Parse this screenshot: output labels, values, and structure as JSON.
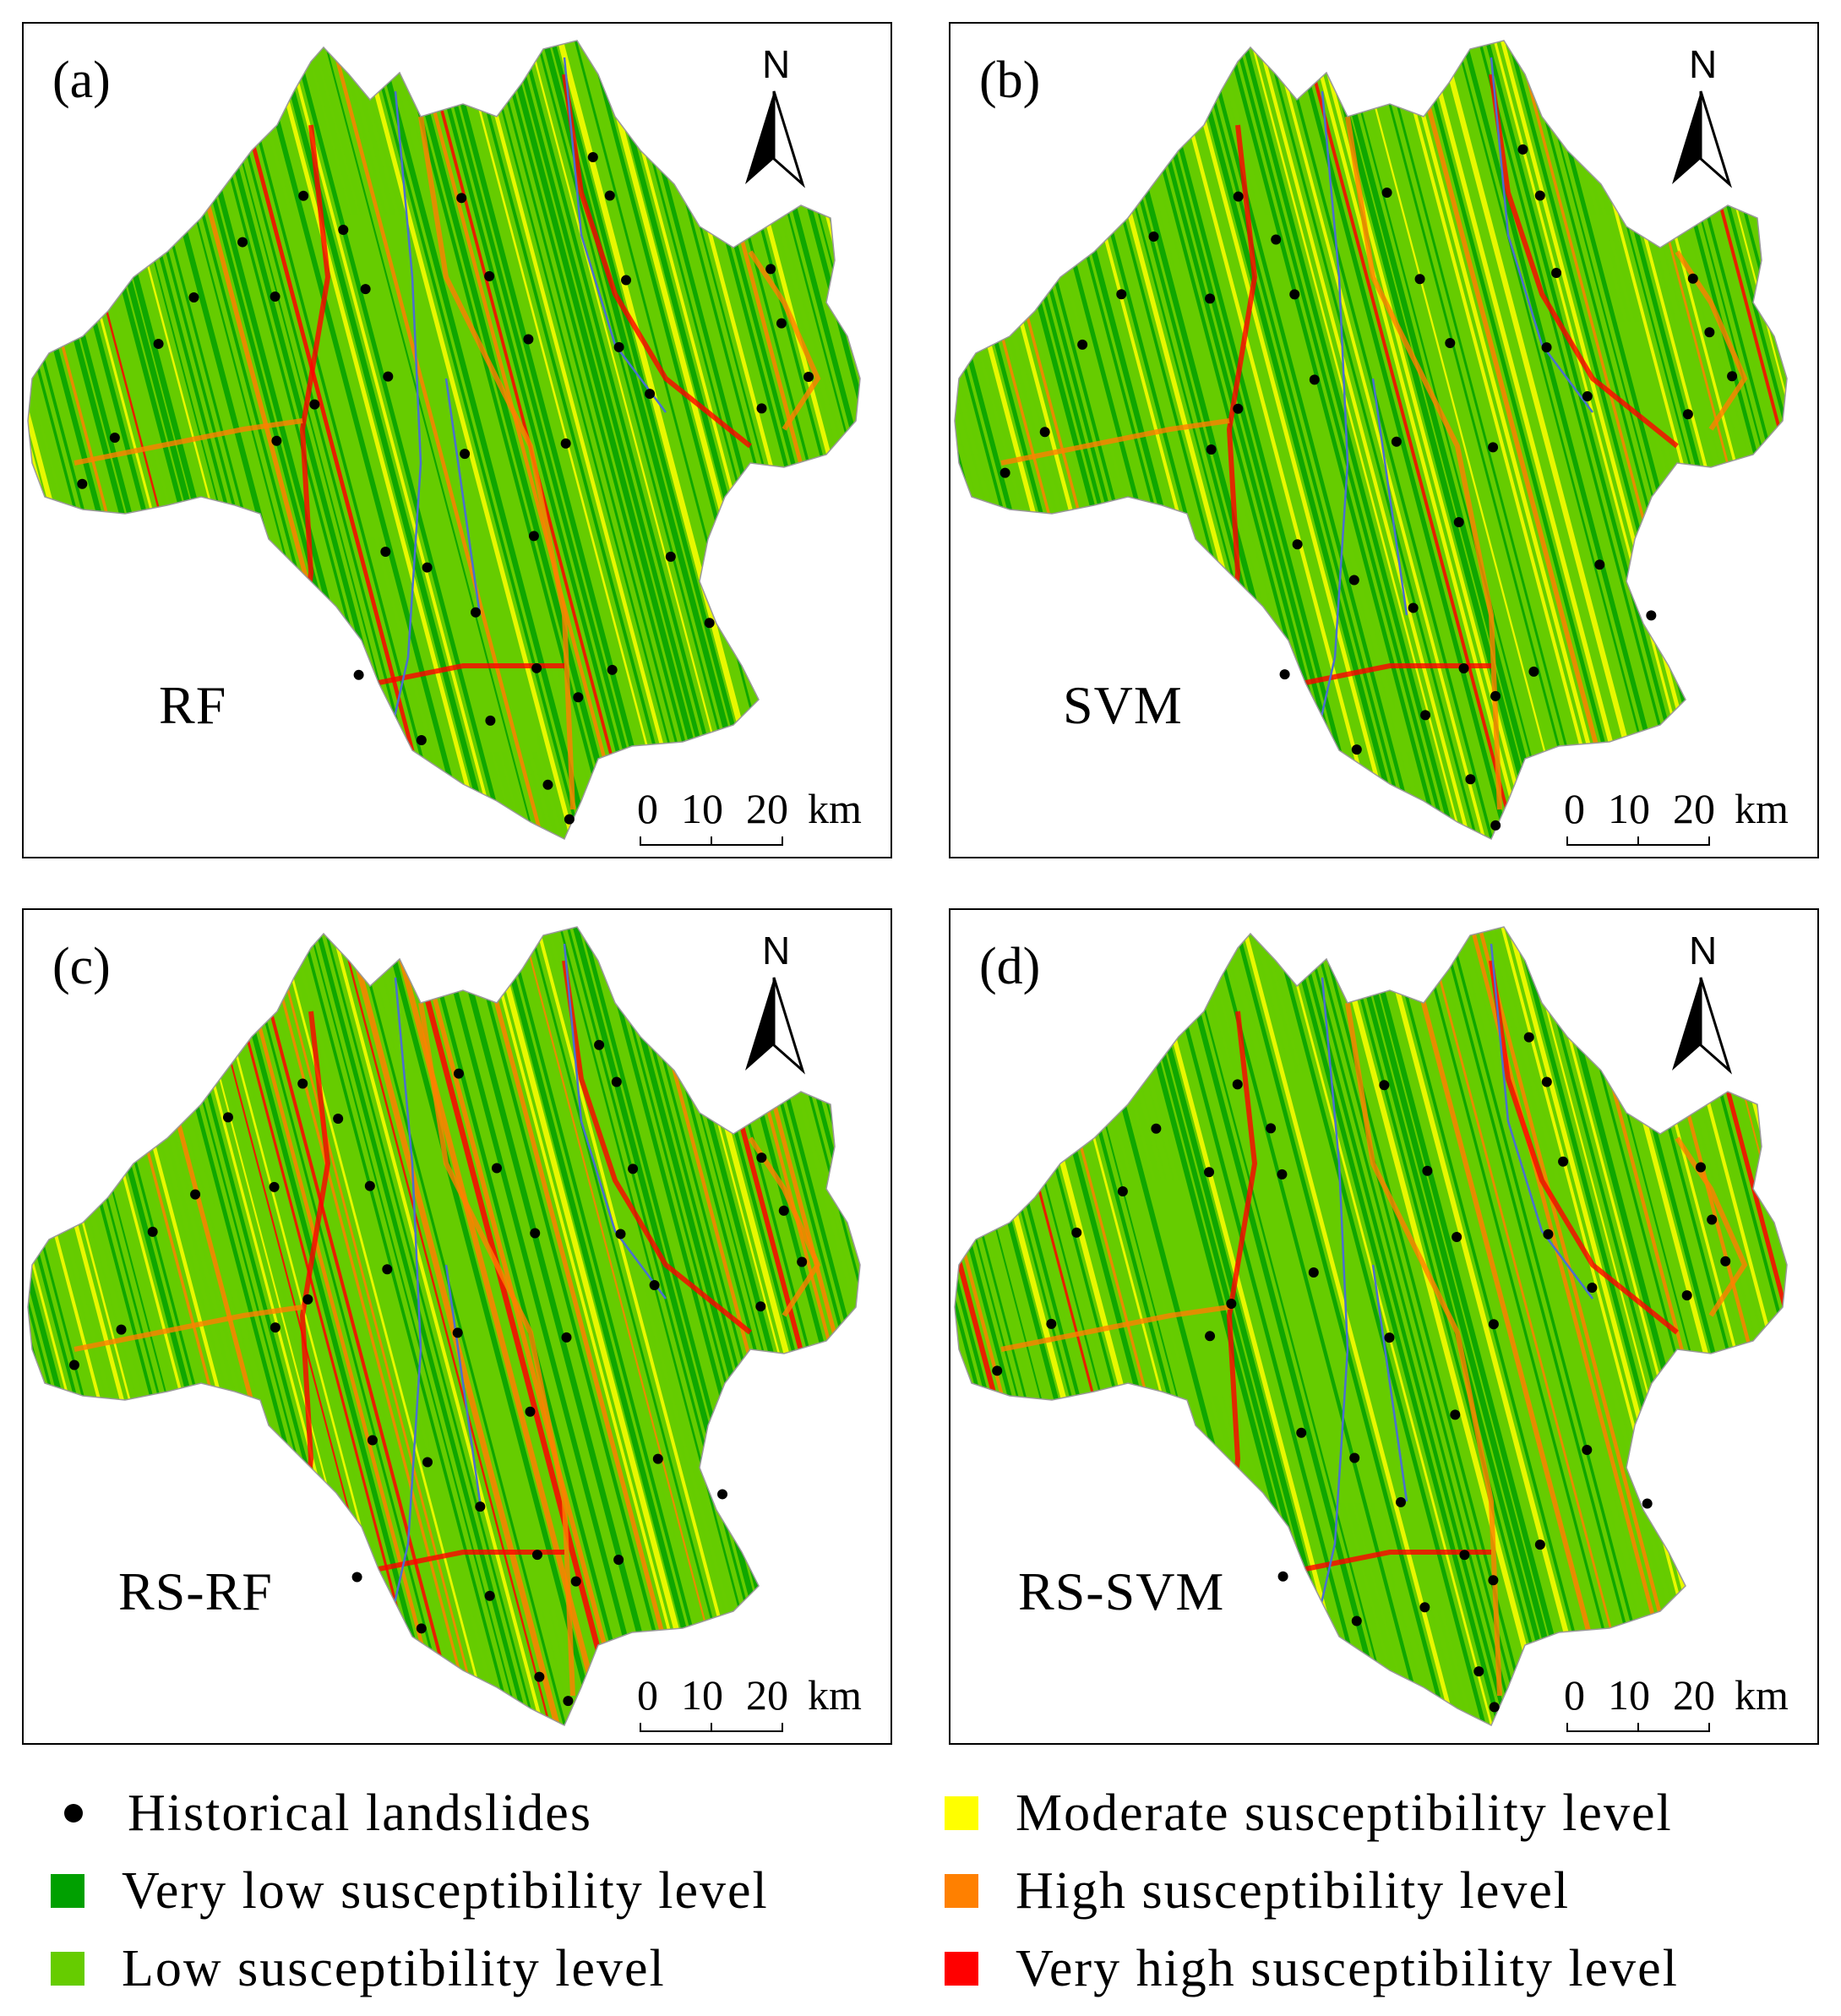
{
  "panels": [
    {
      "id": "a",
      "letter": "(a)",
      "model": "RF",
      "north": "N",
      "scale": {
        "ticks": [
          "0",
          "10",
          "20"
        ],
        "unit": "km"
      }
    },
    {
      "id": "b",
      "letter": "(b)",
      "model": "SVM",
      "north": "N",
      "scale": {
        "ticks": [
          "0",
          "10",
          "20"
        ],
        "unit": "km"
      }
    },
    {
      "id": "c",
      "letter": "(c)",
      "model": "RS-RF",
      "north": "N",
      "scale": {
        "ticks": [
          "0",
          "10",
          "20"
        ],
        "unit": "km"
      }
    },
    {
      "id": "d",
      "letter": "(d)",
      "model": "RS-SVM",
      "north": "N",
      "scale": {
        "ticks": [
          "0",
          "10",
          "20"
        ],
        "unit": "km"
      }
    }
  ],
  "legend": {
    "landslides": {
      "label": "Historical landslides",
      "color": "#000000"
    },
    "classes": [
      {
        "label": "Very low susceptibility level",
        "color": "#00A000"
      },
      {
        "label": "Low susceptibility level",
        "color": "#66CC00"
      },
      {
        "label": "Moderate susceptibility level",
        "color": "#FFFF00"
      },
      {
        "label": "High susceptibility level",
        "color": "#FF8000"
      },
      {
        "label": "Very high susceptibility level",
        "color": "#FF0000"
      }
    ]
  },
  "colors": {
    "river": "#4a6fd0"
  }
}
